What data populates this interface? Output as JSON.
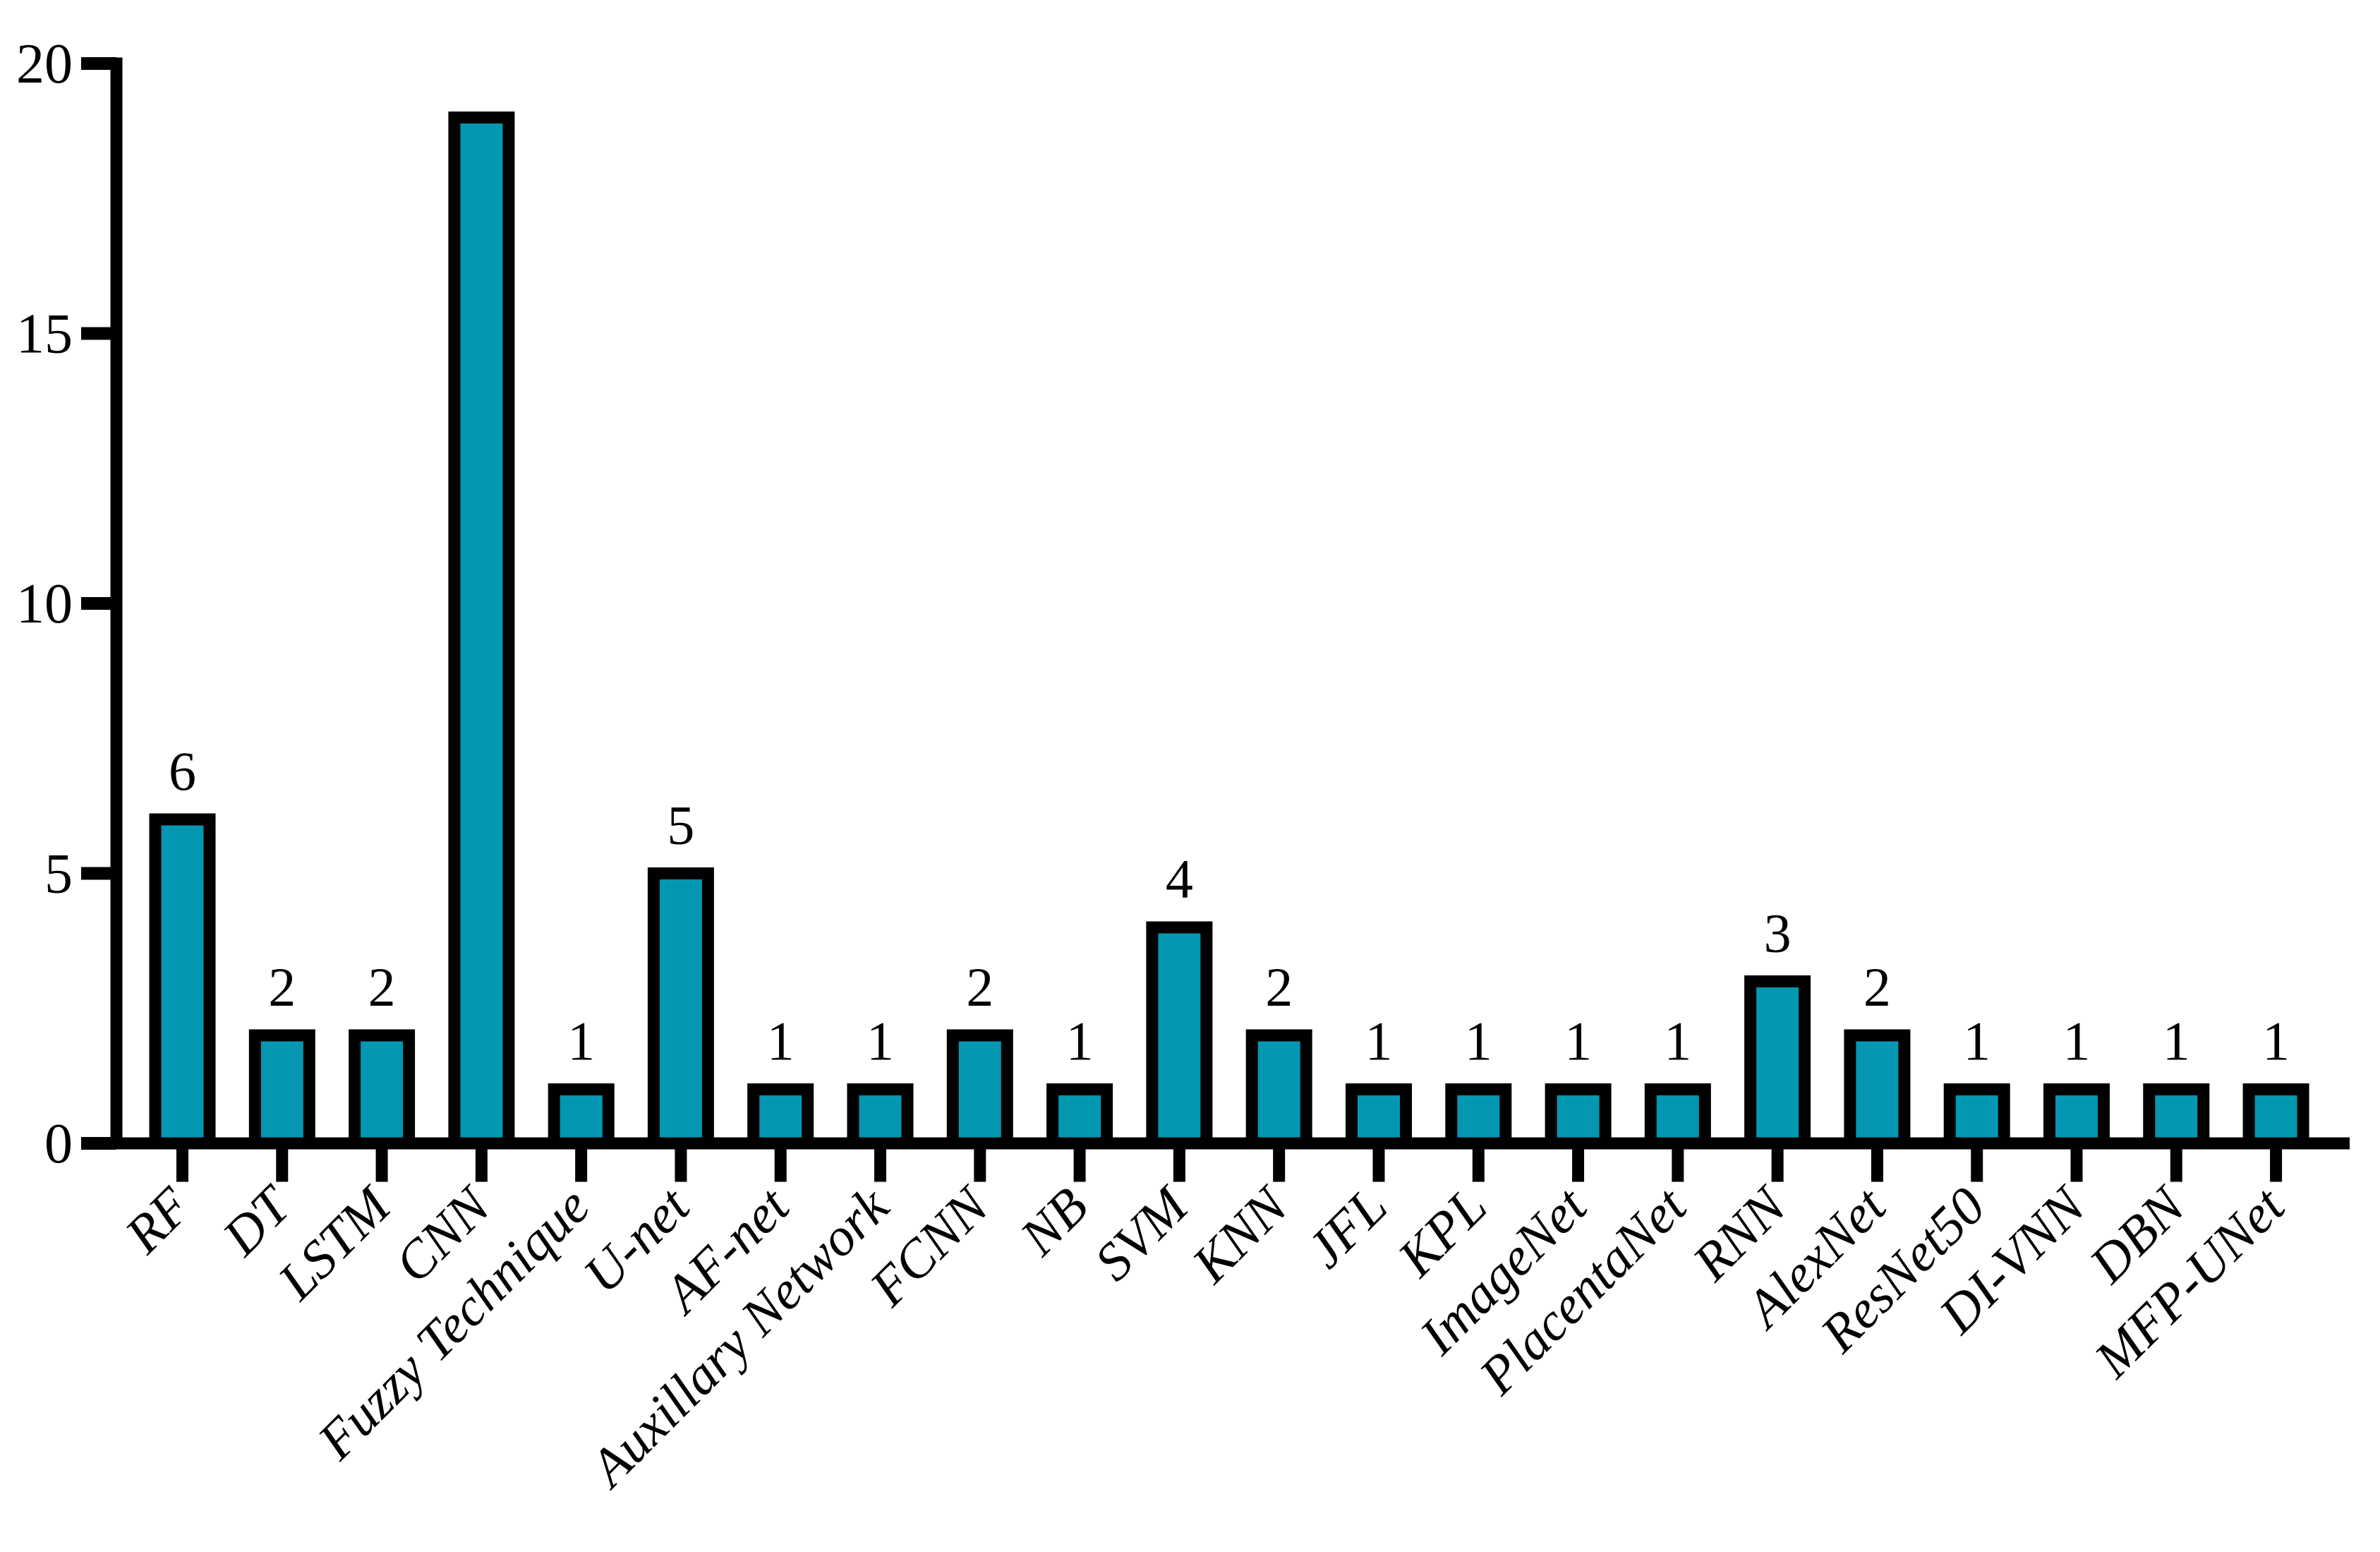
{
  "chart_data": {
    "type": "bar",
    "title": "",
    "subtitle": "",
    "xlabel": "",
    "ylabel": "",
    "categories": [
      "RF",
      "DT",
      "LSTM",
      "CNN",
      "Fuzzy Technique",
      "U-net",
      "AF-net",
      "Auxillary Network",
      "FCNN",
      "NB",
      "SVM",
      "KNN",
      "JFL",
      "KPL",
      "ImageNet",
      "PlacentaNet",
      "RNN",
      "AlexNet",
      "ResNet50",
      "DI-VNN",
      "DBN",
      "MFP-UNet"
    ],
    "values": [
      6,
      2,
      2,
      19,
      1,
      5,
      1,
      1,
      2,
      1,
      4,
      2,
      1,
      1,
      1,
      1,
      3,
      2,
      1,
      1,
      1,
      1
    ],
    "data_labels": [
      "6",
      "2",
      "2",
      "",
      "1",
      "5",
      "1",
      "1",
      "2",
      "1",
      "4",
      "2",
      "1",
      "1",
      "1",
      "1",
      "3",
      "2",
      "1",
      "1",
      "1",
      "1"
    ],
    "ylim": [
      0,
      20
    ],
    "yticks": [
      0,
      5,
      10,
      15,
      20
    ],
    "grid": false,
    "legend": null,
    "bar_color": "#0397B2",
    "bar_outline_color": "#000000",
    "axis_color": "#000000",
    "label_color": "#000000"
  }
}
